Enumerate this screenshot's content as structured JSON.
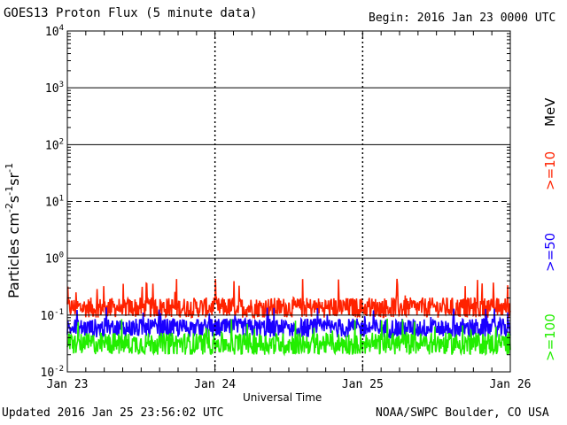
{
  "header": {
    "title": "GOES13 Proton Flux (5 minute data)",
    "begin": "Begin: 2016 Jan 23 0000 UTC"
  },
  "footer": {
    "updated": "Updated 2016 Jan 25 23:56:02 UTC",
    "credit": "NOAA/SWPC Boulder, CO USA"
  },
  "chart_data": {
    "type": "line",
    "title": "GOES13 Proton Flux (5 minute data)",
    "xlabel": "Universal Time",
    "ylabel_parts": [
      "Particles cm",
      "-2",
      "s",
      "-1",
      "sr",
      "-1"
    ],
    "y_scale": "log",
    "ylim": [
      0.01,
      10000
    ],
    "y_tick_labels": [
      {
        "base": "10",
        "exp": "-2"
      },
      {
        "base": "10",
        "exp": "-1"
      },
      {
        "base": "10",
        "exp": "0"
      },
      {
        "base": "10",
        "exp": "1"
      },
      {
        "base": "10",
        "exp": "2"
      },
      {
        "base": "10",
        "exp": "3"
      },
      {
        "base": "10",
        "exp": "4"
      }
    ],
    "x_ticks": [
      "Jan 23",
      "Jan 24",
      "Jan 25",
      "Jan 26"
    ],
    "xlim_days": [
      0,
      3
    ],
    "right_labels": {
      "unit": "MeV"
    },
    "series": [
      {
        "name": ">=10",
        "color": "#ff2200",
        "typical": 0.15,
        "low": 0.09,
        "high": 0.45
      },
      {
        "name": ">=50",
        "color": "#1a00ff",
        "typical": 0.065,
        "low": 0.04,
        "high": 0.15
      },
      {
        "name": ">=100",
        "color": "#22ee00",
        "typical": 0.035,
        "low": 0.02,
        "high": 0.09
      }
    ],
    "reference_lines": [
      {
        "value": 10,
        "style": "dashed"
      },
      {
        "value": 1,
        "style": "solid"
      },
      {
        "value": 0.1,
        "style": "solid"
      }
    ]
  }
}
